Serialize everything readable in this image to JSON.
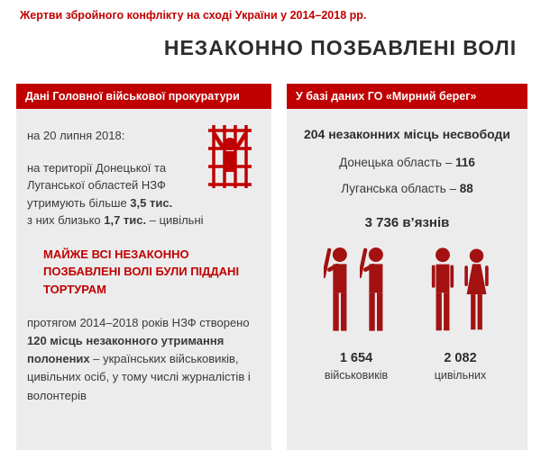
{
  "page": {
    "supertitle": "Жертви збройного конфлікту на сході України у 2014–2018 рр.",
    "title": "НЕЗАКОННО ПОЗБАВЛЕНІ ВОЛІ"
  },
  "colors": {
    "accent_red": "#c00000",
    "figure_red": "#a31111",
    "panel_background": "#ececec",
    "body_text": "#3a3a3a"
  },
  "icons": {
    "prisoner": "prisoner-behind-bars-icon",
    "military": "soldier-with-rifle-icon",
    "civilian_male": "man-icon",
    "civilian_female": "woman-icon"
  },
  "left_panel": {
    "header": "Дані Головної військової прокуратури",
    "date_line": "на 20 липня 2018:",
    "para1_segments": [
      {
        "text": "на території Донецької та Луганської областей НЗФ утримують більше ",
        "bold": false
      },
      {
        "text": "3,5 тис.",
        "bold": true
      },
      {
        "text": "\nз них близько ",
        "bold": false
      },
      {
        "text": "1,7 тис.",
        "bold": true
      },
      {
        "text": " – цивільні",
        "bold": false
      }
    ],
    "highlight": "МАЙЖЕ ВСІ НЕЗАКОННО ПОЗБАВЛЕНІ ВОЛІ БУЛИ ПІДДАНІ ТОРТУРАМ",
    "para2_segments": [
      {
        "text": "протягом 2014–2018 років НЗФ створено ",
        "bold": false
      },
      {
        "text": "120 місць незаконного утримання полонених",
        "bold": true
      },
      {
        "text": " – українських військовиків, цивільних осіб, у тому числі журналістів і волонтерів",
        "bold": false
      }
    ]
  },
  "right_panel": {
    "header": "У базі даних ГО «Мирний берег»",
    "total_line": "204 незаконних місць несвободи",
    "regions": [
      {
        "label": "Донецька область – ",
        "value": "116"
      },
      {
        "label": "Луганська область – ",
        "value": "88"
      }
    ],
    "prisoners_line": "3 736 в’язнів",
    "groups": [
      {
        "value": "1 654",
        "label": "військовиків"
      },
      {
        "value": "2 082",
        "label": "цивільних"
      }
    ]
  },
  "chart_data": {
    "type": "table",
    "title": "НЕЗАКОННО ПОЗБАВЛЕНІ ВОЛІ",
    "rows": [
      {
        "label": "утримують НЗФ на території Донецької та Луганської областей (на 20 липня 2018)",
        "value": "більше 3,5 тис."
      },
      {
        "label": "з них цивільні",
        "value": "близько 1,7 тис."
      },
      {
        "label": "місць незаконного утримання полонених створено НЗФ (2014–2018)",
        "value": 120
      },
      {
        "label": "незаконних місць несвободи",
        "value": 204
      },
      {
        "label": "Донецька область",
        "value": 116
      },
      {
        "label": "Луганська область",
        "value": 88
      },
      {
        "label": "в’язнів",
        "value": 3736
      },
      {
        "label": "військовиків",
        "value": 1654
      },
      {
        "label": "цивільних",
        "value": 2082
      }
    ]
  }
}
